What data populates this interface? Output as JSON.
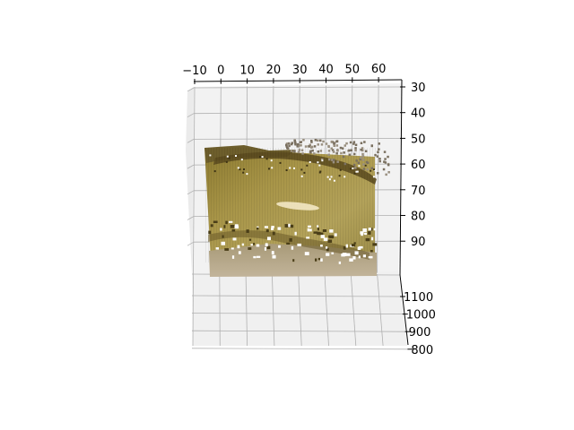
{
  "chart_data": {
    "type": "scatter",
    "projection": "3d",
    "title": "",
    "xlabel": "",
    "ylabel": "",
    "zlabel": "",
    "x_ticks": [
      -10,
      0,
      10,
      20,
      30,
      40,
      50,
      60
    ],
    "y_ticks": [
      30,
      40,
      50,
      60,
      70,
      80,
      90
    ],
    "z_ticks": [
      1100,
      1000,
      900,
      800
    ],
    "x_tick_labels": [
      "−10",
      "0",
      "10",
      "20",
      "30",
      "40",
      "50",
      "60"
    ],
    "y_tick_labels": [
      "30",
      "40",
      "50",
      "60",
      "70",
      "80",
      "90"
    ],
    "z_tick_labels": [
      "1100",
      "1000",
      "900",
      "800"
    ],
    "xlim": [
      -11,
      70
    ],
    "ylim": [
      28,
      100
    ],
    "zlim": [
      800,
      1140
    ],
    "grid": true,
    "point_cloud": {
      "description": "dense colored point cloud rendered as an image-like surface",
      "x_range": [
        -6,
        62
      ],
      "y_range": [
        50,
        100
      ],
      "colors": {
        "body": "#9c8a3a",
        "dark_band": "#5a4a1e",
        "highlight": "#f3e8c4",
        "bottom_strip": "#b7a68b",
        "sparse_top": "#7a7060"
      }
    }
  }
}
